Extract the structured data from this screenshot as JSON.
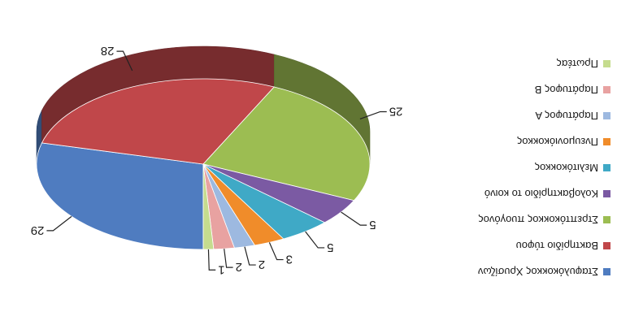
{
  "chart_data": {
    "type": "pie",
    "title": "",
    "categories": [
      "Σταφυλόκοκκος Χρυσίζων",
      "Βακτηρίδιο τύφου",
      "Στρεπτόκοκκος πυογόνος",
      "Κολοβακτηρίδιο το κοινό",
      "Μελιτόκοκκος",
      "Πνευμονιόκοκκος",
      "Παράτυφος Α",
      "Παράτυφος Β",
      "Πρωτέας"
    ],
    "values": [
      29,
      28,
      25,
      5,
      5,
      3,
      2,
      2,
      1
    ],
    "colors": [
      "#4f7cc0",
      "#c0474a",
      "#9cbd52",
      "#7b5aa3",
      "#3fa9c6",
      "#f08c2a",
      "#9db9e0",
      "#e8a2a1",
      "#c5dc8e"
    ],
    "value_labels": [
      "29",
      "28",
      "25",
      "5",
      "5",
      "3",
      "2",
      "2",
      "1"
    ],
    "legend": {
      "position": "right",
      "orientation": "rotated-180"
    },
    "style": "3d-pie",
    "image_rotation_degrees": 180
  }
}
